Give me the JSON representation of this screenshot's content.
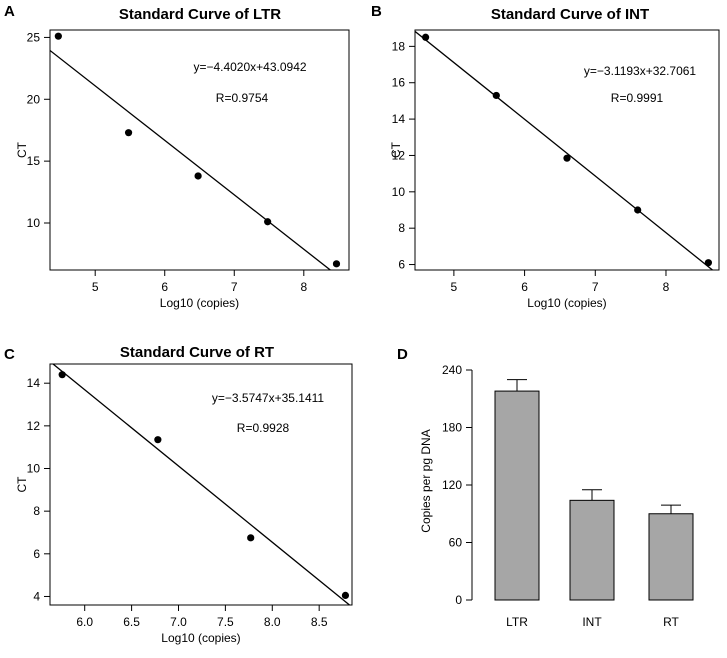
{
  "chart_data": [
    {
      "type": "scatter",
      "panel_label": "A",
      "title": "Standard Curve of LTR",
      "xlabel": "Log10 (copies)",
      "ylabel": "CT",
      "xlim": [
        4.35,
        8.65
      ],
      "ylim": [
        6.2,
        25.6
      ],
      "xticks": [
        5,
        6,
        7,
        8
      ],
      "yticks": [
        10,
        15,
        20,
        25
      ],
      "points": [
        [
          4.47,
          25.1
        ],
        [
          5.48,
          17.3
        ],
        [
          6.48,
          13.8
        ],
        [
          7.48,
          10.1
        ],
        [
          8.47,
          6.7
        ]
      ],
      "fit": {
        "slope": -4.402,
        "intercept": 43.0942
      },
      "equation": "y=−4.4020x+43.0942",
      "r_label": "R=0.9754"
    },
    {
      "type": "scatter",
      "panel_label": "B",
      "title": "Standard Curve of INT",
      "xlabel": "Log10 (copies)",
      "ylabel": "CT",
      "xlim": [
        4.45,
        8.75
      ],
      "ylim": [
        5.7,
        18.9
      ],
      "xticks": [
        5,
        6,
        7,
        8
      ],
      "yticks": [
        6,
        8,
        10,
        12,
        14,
        16,
        18
      ],
      "points": [
        [
          4.6,
          18.5
        ],
        [
          5.6,
          15.3
        ],
        [
          6.6,
          11.85
        ],
        [
          7.6,
          9.0
        ],
        [
          8.6,
          6.1
        ]
      ],
      "fit": {
        "slope": -3.1193,
        "intercept": 32.7061
      },
      "equation": "y=−3.1193x+32.7061",
      "r_label": "R=0.9991"
    },
    {
      "type": "scatter",
      "panel_label": "C",
      "title": "Standard Curve of RT",
      "xlabel": "Log10 (copies)",
      "ylabel": "CT",
      "xlim": [
        5.63,
        8.85
      ],
      "ylim": [
        3.6,
        14.9
      ],
      "xticks": [
        6.0,
        6.5,
        7.0,
        7.5,
        8.0,
        8.5
      ],
      "xtick_labels": [
        "6.0",
        "6.5",
        "7.0",
        "7.5",
        "8.0",
        "8.5"
      ],
      "yticks": [
        4,
        6,
        8,
        10,
        12,
        14
      ],
      "points": [
        [
          5.76,
          14.4
        ],
        [
          6.78,
          11.35
        ],
        [
          7.77,
          6.75
        ],
        [
          8.78,
          4.05
        ]
      ],
      "fit": {
        "slope": -3.5747,
        "intercept": 35.1411
      },
      "equation": "y=−3.5747x+35.1411",
      "r_label": "R=0.9928"
    },
    {
      "type": "bar",
      "panel_label": "D",
      "title": "",
      "xlabel": "",
      "ylabel": "Copies per pg DNA",
      "categories": [
        "LTR",
        "INT",
        "RT"
      ],
      "values": [
        218,
        104,
        90
      ],
      "errors": [
        12,
        11,
        9
      ],
      "ylim": [
        0,
        240
      ],
      "yticks": [
        0,
        60,
        120,
        180,
        240
      ],
      "bar_color": "#a6a6a6"
    }
  ]
}
